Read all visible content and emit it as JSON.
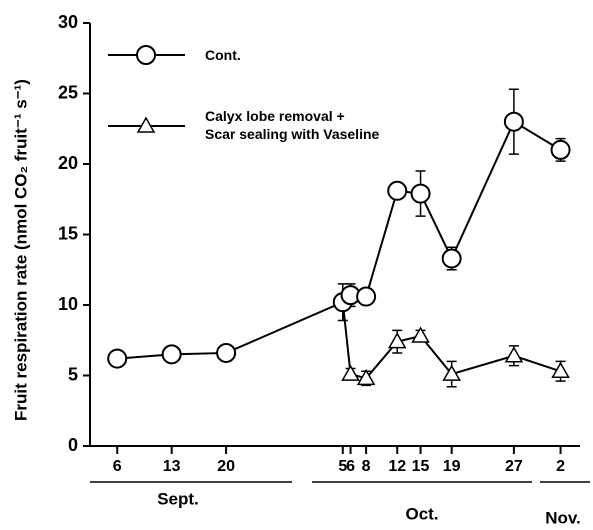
{
  "chart_data": {
    "type": "line",
    "y_label": "Fruit respiration rate (nmol CO₂ fruit⁻¹ s⁻¹)",
    "x": [
      6,
      13,
      20,
      35,
      36,
      38,
      42,
      45,
      49,
      57,
      63
    ],
    "xlim": [
      2.5,
      65.5
    ],
    "xticks": [
      6,
      13,
      20,
      {
        "value": 35,
        "label": "5"
      },
      {
        "value": 36,
        "label": "6"
      },
      {
        "value": 38,
        "label": "8"
      },
      {
        "value": 42,
        "label": "12"
      },
      {
        "value": 45,
        "label": "15"
      },
      {
        "value": 49,
        "label": "19"
      },
      {
        "value": 57,
        "label": "27"
      },
      {
        "value": 63,
        "label": "2"
      }
    ],
    "months": [
      "Sept.",
      "Oct.",
      "Nov."
    ],
    "ylim": [
      0,
      30
    ],
    "yticks": [
      0,
      5,
      10,
      15,
      20,
      25,
      30
    ],
    "series": [
      {
        "name": "Cont.",
        "color": "#000000",
        "marker": "circle",
        "values": [
          6.2,
          6.5,
          6.6,
          10.2,
          10.7,
          10.6,
          18.1,
          17.9,
          13.3,
          23.0,
          21.0
        ],
        "errors": [
          null,
          null,
          null,
          1.3,
          0.8,
          null,
          0.5,
          1.6,
          0.8,
          2.3,
          0.8
        ]
      },
      {
        "name": "Calyx lobe removal +\nScar sealing with Vaseline",
        "color": "#000000",
        "marker": "triangle",
        "values": [
          null,
          null,
          null,
          10.2,
          5.1,
          4.8,
          7.4,
          7.8,
          5.1,
          6.4,
          5.3
        ],
        "errors": [
          null,
          null,
          null,
          null,
          0.4,
          0.5,
          0.8,
          0.4,
          0.9,
          0.7,
          0.7
        ]
      }
    ]
  }
}
